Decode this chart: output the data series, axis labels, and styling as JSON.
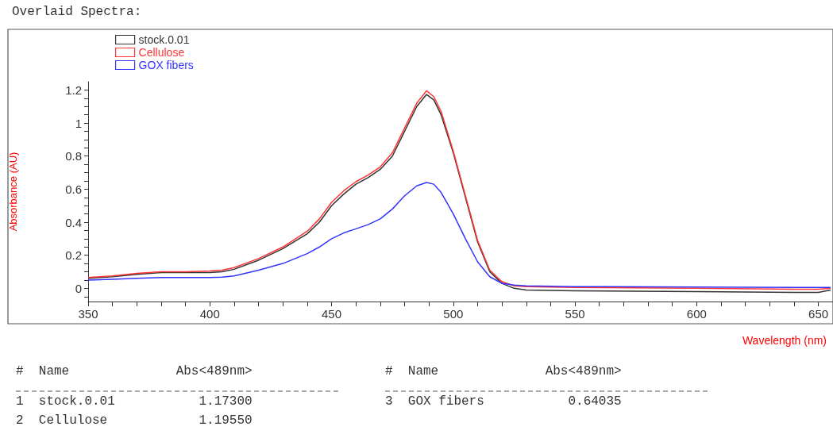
{
  "chart_data": {
    "type": "line",
    "title": "Overlaid Spectra:",
    "xlabel": "Wavelength (nm)",
    "ylabel": "Absorbance (AU)",
    "x": [
      350,
      360,
      370,
      380,
      390,
      400,
      405,
      410,
      420,
      430,
      440,
      445,
      450,
      455,
      460,
      465,
      470,
      475,
      480,
      485,
      489,
      492,
      495,
      500,
      505,
      510,
      515,
      520,
      525,
      530,
      550,
      600,
      640,
      650,
      655
    ],
    "series": [
      {
        "name": "stock.0.01",
        "color": "#333333",
        "values": [
          0.06,
          0.07,
          0.085,
          0.095,
          0.095,
          0.095,
          0.1,
          0.115,
          0.17,
          0.24,
          0.33,
          0.4,
          0.5,
          0.57,
          0.63,
          0.67,
          0.72,
          0.8,
          0.95,
          1.1,
          1.173,
          1.14,
          1.05,
          0.82,
          0.55,
          0.28,
          0.1,
          0.03,
          0,
          -0.01,
          -0.015,
          -0.02,
          -0.025,
          -0.025,
          -0.01
        ]
      },
      {
        "name": "Cellulose",
        "color": "#ff3333",
        "values": [
          0.065,
          0.075,
          0.09,
          0.1,
          0.1,
          0.105,
          0.11,
          0.125,
          0.18,
          0.25,
          0.345,
          0.42,
          0.52,
          0.59,
          0.645,
          0.685,
          0.735,
          0.82,
          0.97,
          1.12,
          1.1955,
          1.16,
          1.07,
          0.83,
          0.56,
          0.29,
          0.11,
          0.04,
          0.015,
          0.01,
          0.005,
          0,
          -0.005,
          -0.005,
          0
        ]
      },
      {
        "name": "GOX fibers",
        "color": "#3333ff",
        "values": [
          0.05,
          0.055,
          0.06,
          0.065,
          0.065,
          0.065,
          0.068,
          0.075,
          0.11,
          0.15,
          0.21,
          0.25,
          0.3,
          0.335,
          0.36,
          0.385,
          0.42,
          0.48,
          0.56,
          0.62,
          0.64,
          0.63,
          0.58,
          0.45,
          0.3,
          0.16,
          0.07,
          0.03,
          0.02,
          0.015,
          0.01,
          0.008,
          0.005,
          0.005,
          0.005
        ]
      }
    ],
    "xlim": [
      350,
      656
    ],
    "xticks": [
      350,
      {
        "value": 360,
        "label": null
      },
      {
        "value": 370,
        "label": null
      },
      {
        "value": 380,
        "label": null
      },
      {
        "value": 390,
        "label": null
      },
      400,
      {
        "value": 410,
        "label": null
      },
      {
        "value": 420,
        "label": null
      },
      {
        "value": 430,
        "label": null
      },
      {
        "value": 440,
        "label": null
      },
      450,
      {
        "value": 460,
        "label": null
      },
      {
        "value": 470,
        "label": null
      },
      {
        "value": 480,
        "label": null
      },
      {
        "value": 490,
        "label": null
      },
      500,
      {
        "value": 510,
        "label": null
      },
      {
        "value": 520,
        "label": null
      },
      {
        "value": 530,
        "label": null
      },
      {
        "value": 540,
        "label": null
      },
      550,
      {
        "value": 560,
        "label": null
      },
      {
        "value": 570,
        "label": null
      },
      {
        "value": 580,
        "label": null
      },
      {
        "value": 590,
        "label": null
      },
      600,
      {
        "value": 610,
        "label": null
      },
      {
        "value": 620,
        "label": null
      },
      {
        "value": 630,
        "label": null
      },
      {
        "value": 640,
        "label": null
      },
      650
    ],
    "ylim": [
      -0.08,
      1.25
    ],
    "yticks": [
      {
        "value": -0.05,
        "label": null
      },
      0,
      {
        "value": 0.05,
        "label": null
      },
      {
        "value": 0.1,
        "label": null
      },
      {
        "value": 0.15,
        "label": null
      },
      0.2,
      {
        "value": 0.25,
        "label": null
      },
      {
        "value": 0.3,
        "label": null
      },
      {
        "value": 0.35,
        "label": null
      },
      0.4,
      {
        "value": 0.45,
        "label": null
      },
      {
        "value": 0.5,
        "label": null
      },
      {
        "value": 0.55,
        "label": null
      },
      0.6,
      {
        "value": 0.65,
        "label": null
      },
      {
        "value": 0.7,
        "label": null
      },
      {
        "value": 0.75,
        "label": null
      },
      0.8,
      {
        "value": 0.85,
        "label": null
      },
      {
        "value": 0.9,
        "label": null
      },
      {
        "value": 0.95,
        "label": null
      },
      1,
      {
        "value": 1.05,
        "label": null
      },
      {
        "value": 1.1,
        "label": null
      },
      {
        "value": 1.15,
        "label": null
      },
      1.2
    ],
    "grid": false,
    "legend": "top left",
    "marker": "none",
    "line_style": "solid",
    "annotations": [
      "#  Name              Abs<489nm>",
      "1  stock.0.01           1.17300",
      "2  Cellulose            1.19550",
      "#  Name              Abs<489nm>",
      "3  GOX fibers           0.64035"
    ]
  }
}
